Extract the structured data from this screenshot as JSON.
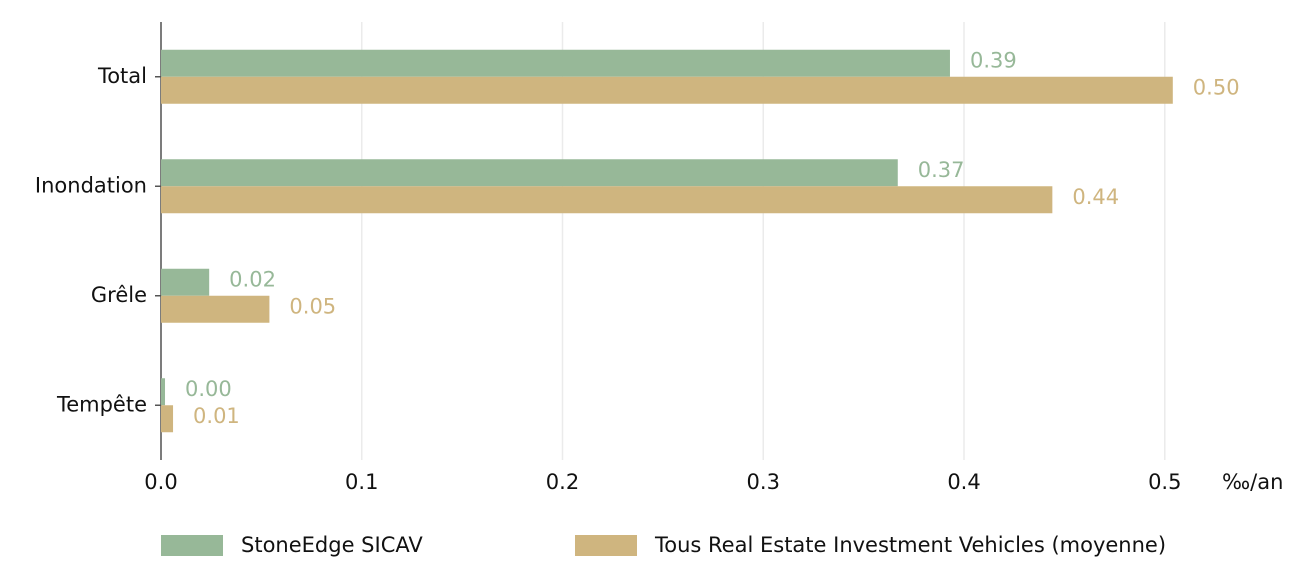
{
  "chart_data": {
    "type": "hbar",
    "categories": [
      "Total",
      "Inondation",
      "Grêle",
      "Tempête"
    ],
    "series": [
      {
        "name": "StoneEdge SICAV",
        "color": "#97b898",
        "values": [
          0.393,
          0.367,
          0.024,
          0.002
        ],
        "value_labels": [
          "0.39",
          "0.37",
          "0.02",
          "0.00"
        ]
      },
      {
        "name": "Tous Real Estate Investment Vehicles (moyenne)",
        "color": "#cfb57f",
        "values": [
          0.504,
          0.444,
          0.054,
          0.006
        ],
        "value_labels": [
          "0.50",
          "0.44",
          "0.05",
          "0.01"
        ]
      }
    ],
    "xlabel": "‰/an",
    "xlim": [
      0,
      0.53
    ],
    "xticks": [
      {
        "value": 0,
        "label": "0.0"
      },
      0.1,
      0.2,
      0.3,
      0.4,
      0.5
    ],
    "grid": true,
    "legend": "bottom"
  }
}
